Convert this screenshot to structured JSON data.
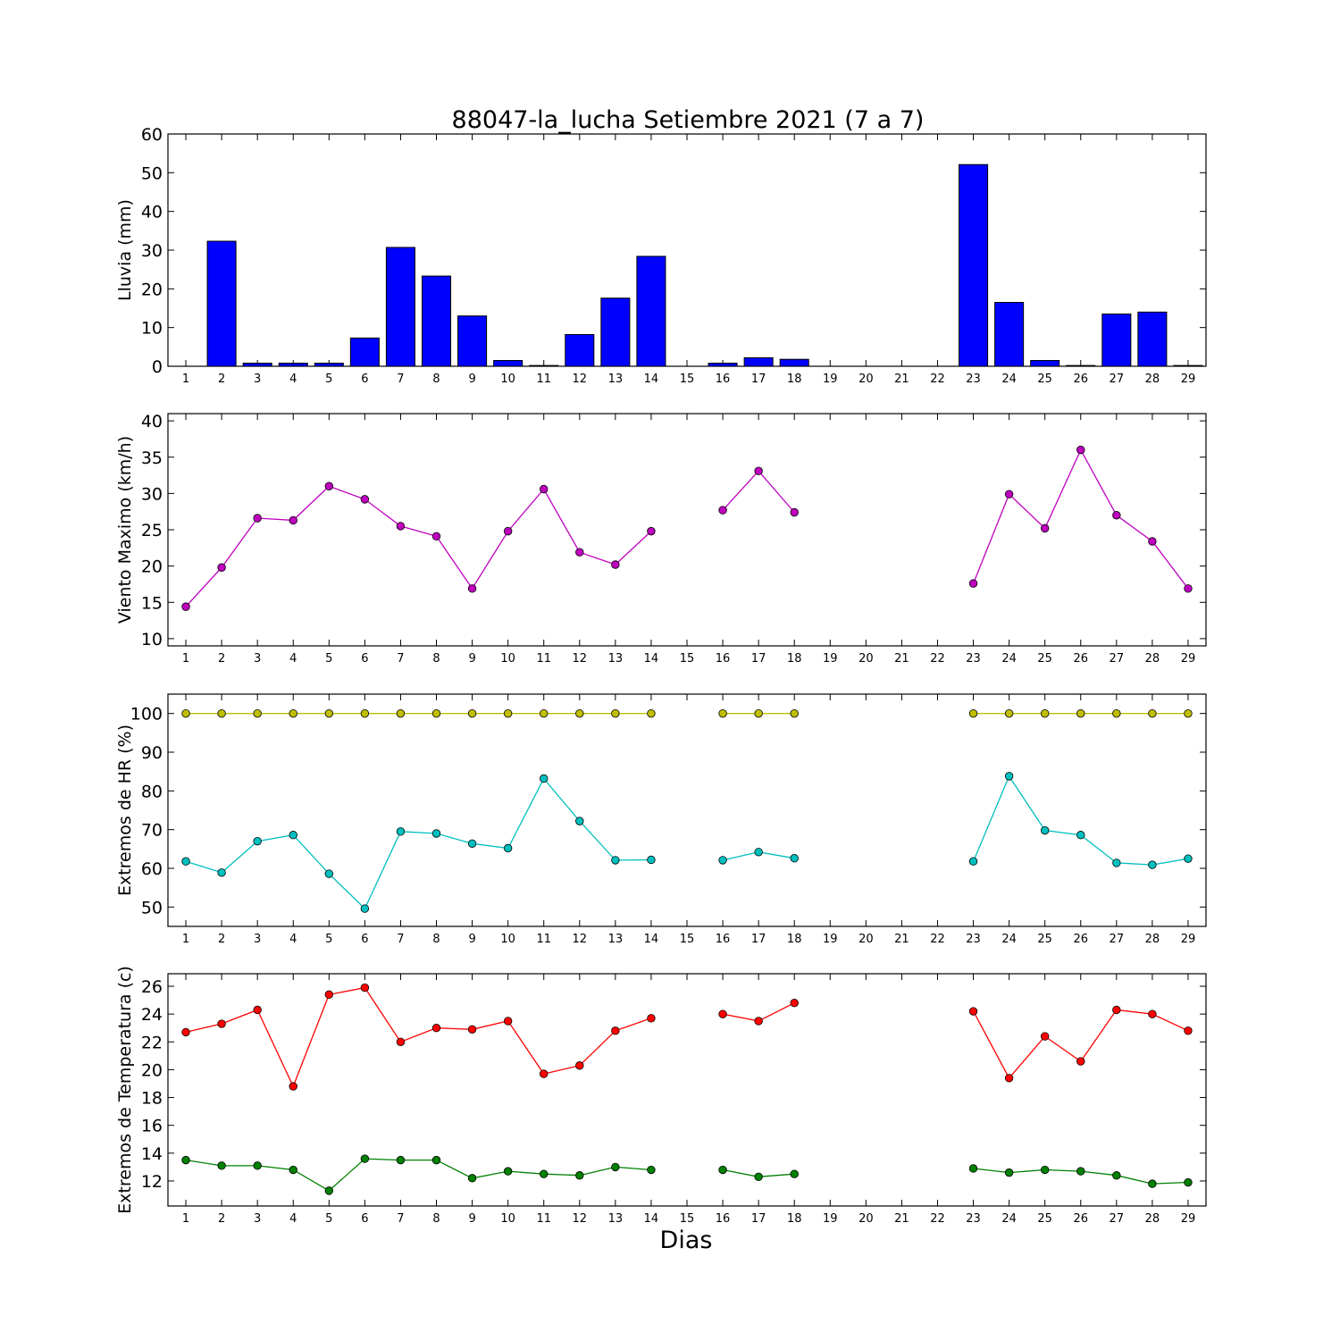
{
  "title": "88047-la_lucha Setiembre 2021  (7 a 7)",
  "xlabel": "Dias",
  "chart_data": [
    {
      "type": "bar",
      "ylabel": "Lluvia (mm)",
      "ylim": [
        0,
        60
      ],
      "yticks": [
        0,
        10,
        20,
        30,
        40,
        50,
        60
      ],
      "x": [
        1,
        2,
        3,
        4,
        5,
        6,
        7,
        8,
        9,
        10,
        11,
        12,
        13,
        14,
        15,
        16,
        17,
        18,
        19,
        20,
        21,
        22,
        23,
        24,
        25,
        26,
        27,
        28,
        29
      ],
      "series": [
        {
          "color": "#0000ff",
          "values": [
            0.0,
            32.3,
            0.8,
            0.8,
            0.8,
            7.3,
            30.7,
            23.3,
            13.0,
            1.5,
            0.2,
            8.2,
            17.6,
            28.4,
            0.0,
            0.8,
            2.2,
            1.8,
            0.0,
            0.0,
            0.0,
            0.0,
            52.1,
            16.5,
            1.5,
            0.2,
            13.5,
            14.0,
            0.2
          ]
        }
      ]
    },
    {
      "type": "line",
      "ylabel": "Viento Maximo (km/h)",
      "ylim": [
        9,
        41
      ],
      "yticks": [
        10,
        15,
        20,
        25,
        30,
        35,
        40
      ],
      "x": [
        1,
        2,
        3,
        4,
        5,
        6,
        7,
        8,
        9,
        10,
        11,
        12,
        13,
        14,
        15,
        16,
        17,
        18,
        19,
        20,
        21,
        22,
        23,
        24,
        25,
        26,
        27,
        28,
        29
      ],
      "series": [
        {
          "color": "#bf00bf",
          "values": [
            14.4,
            19.8,
            26.6,
            26.3,
            31.0,
            29.2,
            25.5,
            24.1,
            16.9,
            24.8,
            30.6,
            21.9,
            20.2,
            24.8,
            null,
            27.7,
            33.1,
            27.4,
            null,
            null,
            null,
            null,
            17.6,
            29.9,
            25.2,
            36.0,
            27.0,
            23.4,
            16.9
          ]
        }
      ]
    },
    {
      "type": "line",
      "ylabel": "Extremos de HR (%)",
      "ylim": [
        45,
        105
      ],
      "yticks": [
        50,
        60,
        70,
        80,
        90,
        100
      ],
      "x": [
        1,
        2,
        3,
        4,
        5,
        6,
        7,
        8,
        9,
        10,
        11,
        12,
        13,
        14,
        15,
        16,
        17,
        18,
        19,
        20,
        21,
        22,
        23,
        24,
        25,
        26,
        27,
        28,
        29
      ],
      "series": [
        {
          "color": "#bfbf00",
          "values": [
            100,
            100,
            100,
            100,
            100,
            100,
            100,
            100,
            100,
            100,
            100,
            100,
            100,
            100,
            null,
            100,
            100,
            100,
            null,
            null,
            null,
            null,
            100,
            100,
            100,
            100,
            100,
            100,
            100
          ]
        },
        {
          "color": "#00bfbf",
          "values": [
            61.8,
            58.9,
            67.0,
            68.6,
            58.6,
            49.6,
            69.5,
            69.0,
            66.4,
            65.2,
            83.2,
            72.2,
            62.1,
            62.2,
            null,
            62.1,
            64.2,
            62.6,
            null,
            null,
            null,
            null,
            61.8,
            83.8,
            69.8,
            68.6,
            61.4,
            60.9,
            62.5
          ]
        }
      ]
    },
    {
      "type": "line",
      "ylabel": "Extremos de Temperatura (c)",
      "ylim": [
        10.2,
        26.9
      ],
      "yticks": [
        12,
        14,
        16,
        18,
        20,
        22,
        24,
        26
      ],
      "x": [
        1,
        2,
        3,
        4,
        5,
        6,
        7,
        8,
        9,
        10,
        11,
        12,
        13,
        14,
        15,
        16,
        17,
        18,
        19,
        20,
        21,
        22,
        23,
        24,
        25,
        26,
        27,
        28,
        29
      ],
      "series": [
        {
          "color": "#ff0000",
          "values": [
            22.7,
            23.3,
            24.3,
            18.8,
            25.4,
            25.9,
            22.0,
            23.0,
            22.9,
            23.5,
            19.7,
            20.3,
            22.8,
            23.7,
            null,
            24.0,
            23.5,
            24.8,
            null,
            null,
            null,
            null,
            24.2,
            19.4,
            22.4,
            20.6,
            24.3,
            24.0,
            22.8
          ]
        },
        {
          "color": "#008000",
          "values": [
            13.5,
            13.1,
            13.1,
            12.8,
            11.3,
            13.6,
            13.5,
            13.5,
            12.2,
            12.7,
            12.5,
            12.4,
            13.0,
            12.8,
            null,
            12.8,
            12.3,
            12.5,
            null,
            null,
            null,
            null,
            12.9,
            12.6,
            12.8,
            12.7,
            12.4,
            11.8,
            11.9
          ]
        }
      ]
    }
  ]
}
